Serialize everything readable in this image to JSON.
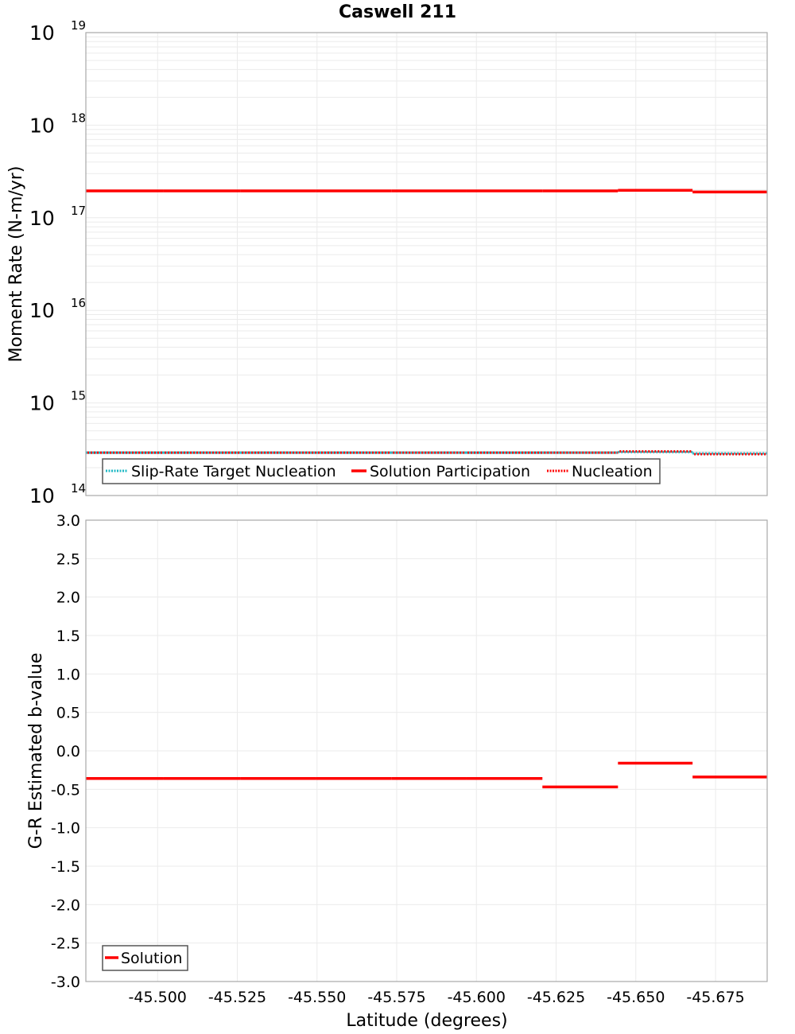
{
  "title": "Caswell 211",
  "colors": {
    "solution": "#ff0000",
    "slip_rate_target": "#1fb8c4",
    "nucleation": "#ff0000",
    "grid": "#ebebeb",
    "frame": "#a8a8a8"
  },
  "top_panel": {
    "ylabel": "Moment Rate (N-m/yr)",
    "yticks": [
      {
        "base": "10",
        "exp": "19"
      },
      {
        "base": "10",
        "exp": "18"
      },
      {
        "base": "10",
        "exp": "17"
      },
      {
        "base": "10",
        "exp": "16"
      },
      {
        "base": "10",
        "exp": "15"
      },
      {
        "base": "10",
        "exp": "14"
      }
    ],
    "legend": [
      {
        "label": "Slip-Rate Target Nucleation",
        "style": "dotted",
        "color": "#1fb8c4"
      },
      {
        "label": "Solution Participation",
        "style": "solid",
        "color": "#ff0000"
      },
      {
        "label": "Nucleation",
        "style": "dotted",
        "color": "#ff0000"
      }
    ]
  },
  "bottom_panel": {
    "ylabel": "G-R Estimated b-value",
    "yticks": [
      "3.0",
      "2.5",
      "2.0",
      "1.5",
      "1.0",
      "0.5",
      "0.0",
      "-0.5",
      "-1.0",
      "-1.5",
      "-2.0",
      "-2.5",
      "-3.0"
    ],
    "legend": [
      {
        "label": "Solution",
        "style": "solid",
        "color": "#ff0000"
      }
    ]
  },
  "xaxis": {
    "label": "Latitude (degrees)",
    "ticks": [
      "-45.500",
      "-45.525",
      "-45.550",
      "-45.575",
      "-45.600",
      "-45.625",
      "-45.650",
      "-45.675"
    ]
  },
  "chart_data": [
    {
      "type": "line",
      "title": "Caswell 211",
      "xlabel": "Latitude (degrees)",
      "ylabel": "Moment Rate (N-m/yr)",
      "yscale": "log",
      "ylim": [
        100000000000000.0,
        1e+19
      ],
      "xlim": [
        -45.4775,
        -45.6912
      ],
      "grid": true,
      "legend_position": "lower left",
      "x_segments": [
        -45.4775,
        -45.5017,
        -45.5259,
        -45.5498,
        -45.5733,
        -45.5967,
        -45.6207,
        -45.6444,
        -45.6678,
        -45.6912
      ],
      "series": [
        {
          "name": "Slip-Rate Target Nucleation",
          "style": "dotted",
          "values": [
            290000000000000.0,
            290000000000000.0,
            290000000000000.0,
            290000000000000.0,
            290000000000000.0,
            290000000000000.0,
            290000000000000.0,
            295000000000000.0,
            285000000000000.0
          ]
        },
        {
          "name": "Solution Participation",
          "style": "solid",
          "values": [
            1.95e+17,
            1.95e+17,
            1.95e+17,
            1.95e+17,
            1.95e+17,
            1.95e+17,
            1.95e+17,
            1.98e+17,
            1.9e+17
          ]
        },
        {
          "name": "Nucleation",
          "style": "dotted",
          "values": [
            290000000000000.0,
            290000000000000.0,
            290000000000000.0,
            290000000000000.0,
            290000000000000.0,
            290000000000000.0,
            290000000000000.0,
            300000000000000.0,
            280000000000000.0
          ]
        }
      ]
    },
    {
      "type": "line",
      "title": "",
      "xlabel": "Latitude (degrees)",
      "ylabel": "G-R Estimated b-value",
      "ylim": [
        -3.0,
        3.0
      ],
      "xlim": [
        -45.4775,
        -45.6912
      ],
      "xticks": [
        -45.5,
        -45.525,
        -45.55,
        -45.575,
        -45.6,
        -45.625,
        -45.65,
        -45.675
      ],
      "grid": true,
      "legend_position": "lower left",
      "x_segments": [
        -45.4775,
        -45.5017,
        -45.5259,
        -45.5498,
        -45.5733,
        -45.5967,
        -45.6207,
        -45.6444,
        -45.6678,
        -45.6912
      ],
      "series": [
        {
          "name": "Solution",
          "style": "solid",
          "values": [
            -0.36,
            -0.36,
            -0.36,
            -0.36,
            -0.36,
            -0.36,
            -0.47,
            -0.16,
            -0.34
          ]
        }
      ]
    }
  ]
}
